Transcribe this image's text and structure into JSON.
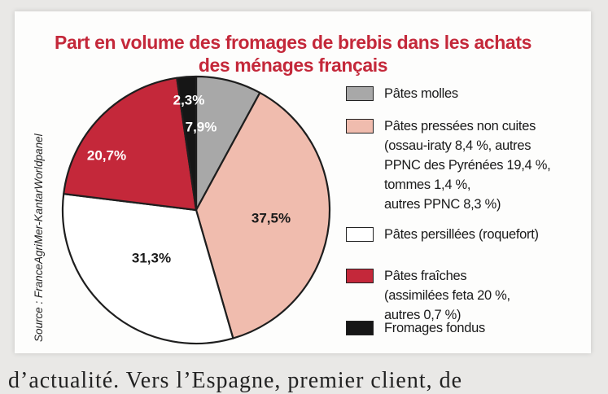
{
  "chart_data": {
    "type": "pie",
    "title": "Part en volume des fromages de brebis dans les achats des ménages français",
    "title_lines": [
      "Part en volume des fromages de brebis dans les achats",
      "des ménages français"
    ],
    "source": "Source : FranceAgriMer-KantarWorldpanel",
    "slices": [
      {
        "label": "Pâtes molles",
        "value": 7.9,
        "display": "7,9%",
        "color": "#a8a8a8",
        "text_color": "#ffffff",
        "legend_lines": [
          "Pâtes molles"
        ]
      },
      {
        "label": "Pâtes pressées non cuites",
        "value": 37.5,
        "display": "37,5%",
        "color": "#f0bcae",
        "text_color": "#1a1a1a",
        "legend_lines": [
          "Pâtes pressées non cuites",
          "(ossau-iraty 8,4 %, autres",
          "PPNC des Pyrénées 19,4 %,",
          "tommes 1,4 %,",
          "autres PPNC 8,3 %)"
        ]
      },
      {
        "label": "Pâtes persillées (roquefort)",
        "value": 31.3,
        "display": "31,3%",
        "color": "#ffffff",
        "text_color": "#1a1a1a",
        "legend_lines": [
          "Pâtes persillées (roquefort)"
        ]
      },
      {
        "label": "Pâtes fraîches",
        "value": 20.7,
        "display": "20,7%",
        "color": "#c4283a",
        "text_color": "#ffffff",
        "legend_lines": [
          "Pâtes fraîches",
          "(assimilées feta 20 %,",
          "autres 0,7 %)"
        ]
      },
      {
        "label": "Fromages fondus",
        "value": 2.3,
        "display": "2,3%",
        "color": "#161616",
        "text_color": "#ffffff",
        "legend_lines": [
          "Fromages fondus"
        ]
      }
    ]
  },
  "footer_text": "d’actualité. Vers l’Espagne, premier client, de"
}
